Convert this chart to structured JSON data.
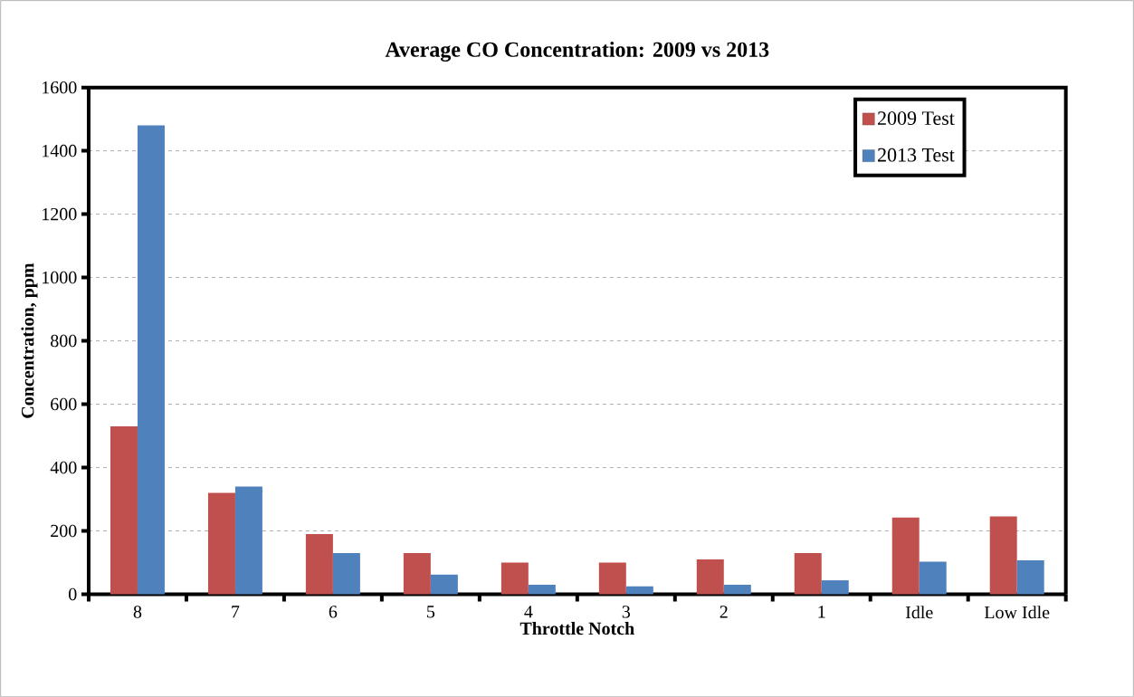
{
  "chart_data": {
    "type": "bar",
    "title": "Average CO Concentration:  2009 vs 2013",
    "xlabel": "Throttle Notch",
    "ylabel": "Concentration, ppm",
    "categories": [
      "8",
      "7",
      "6",
      "5",
      "4",
      "3",
      "2",
      "1",
      "Idle",
      "Low Idle"
    ],
    "series": [
      {
        "name": "2009 Test",
        "color": "#c0504d",
        "values": [
          530,
          320,
          190,
          130,
          100,
          100,
          110,
          130,
          242,
          246
        ]
      },
      {
        "name": "2013 Test",
        "color": "#4f81bd",
        "values": [
          1480,
          340,
          130,
          62,
          30,
          25,
          30,
          44,
          103,
          107
        ]
      }
    ],
    "ylim": [
      0,
      1600
    ],
    "yticks": [
      0,
      200,
      400,
      600,
      800,
      1000,
      1200,
      1400,
      1600
    ],
    "grid": "y",
    "legend": "top right"
  }
}
